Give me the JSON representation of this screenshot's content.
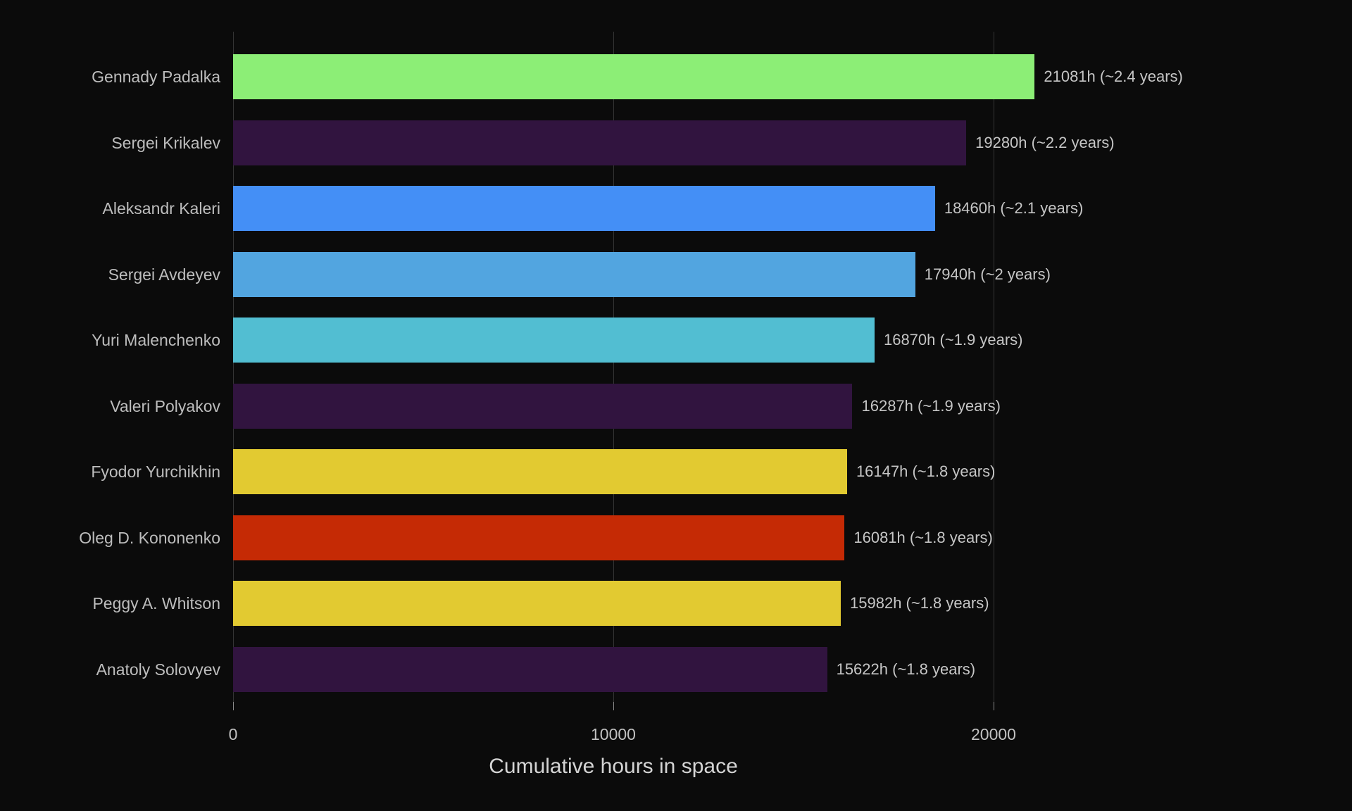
{
  "chart_data": {
    "type": "bar",
    "orientation": "horizontal",
    "title": "",
    "xlabel": "Cumulative hours in space",
    "ylabel": "",
    "xlim": [
      0,
      26100
    ],
    "x_ticks": [
      0,
      10000,
      20000
    ],
    "x_tick_labels": [
      "0",
      "10000",
      "20000"
    ],
    "grid": "vertical-gridlines-behind-bars",
    "legend": "none",
    "categories": [
      "Gennady Padalka",
      "Sergei Krikalev",
      "Aleksandr Kaleri",
      "Sergei Avdeyev",
      "Yuri Malenchenko",
      "Valeri Polyakov",
      "Fyodor Yurchikhin",
      "Oleg D. Kononenko",
      "Peggy A. Whitson",
      "Anatoly Solovyev"
    ],
    "values": [
      21081,
      19280,
      18460,
      17940,
      16870,
      16287,
      16147,
      16081,
      15982,
      15622
    ],
    "bar_labels": [
      "21081h (~2.4 years)",
      "19280h (~2.2 years)",
      "18460h (~2.1 years)",
      "17940h (~2 years)",
      "16870h (~1.9 years)",
      "16287h (~1.9 years)",
      "16147h (~1.8 years)",
      "16081h (~1.8 years)",
      "15982h (~1.8 years)",
      "15622h (~1.8 years)"
    ],
    "bar_colors": [
      "#8cee76",
      "#31143f",
      "#448ff6",
      "#52a5e0",
      "#52bed2",
      "#31143f",
      "#e2ca31",
      "#c52a05",
      "#e2ca31",
      "#31143f"
    ]
  },
  "colors": {
    "background": "#0b0b0b",
    "gridline": "#343434",
    "category_text": "#bdbdbd",
    "value_text": "#c6c6c6",
    "tick_text": "#c2c2c2",
    "axis_title_text": "#d4d4d4",
    "tick_mark": "#8a8a8a"
  }
}
